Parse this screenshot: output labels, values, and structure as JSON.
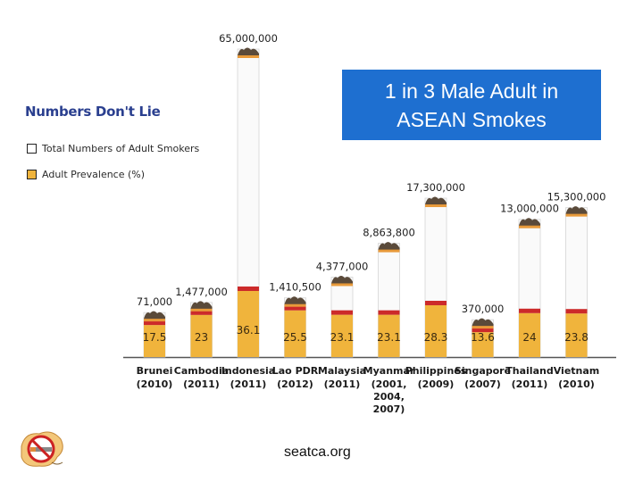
{
  "legend": {
    "title": "Numbers Don't Lie",
    "items": [
      {
        "label": "Total Numbers of Adult Smokers",
        "color": "#ffffff"
      },
      {
        "label": "Adult Prevalence (%)",
        "color": "#f0b43c"
      }
    ]
  },
  "callout": {
    "line1": "1 in 3 Male Adult in",
    "line2": "ASEAN Smokes"
  },
  "footer": {
    "source": "seatca.org"
  },
  "logo_icon": "no-smoking-cigarette-logo",
  "colors": {
    "callout_bg": "#1e6fd0",
    "prevalence_fill": "#f0b43c",
    "filter_band": "#cc2a2a",
    "legend_title": "#2a3f8f"
  },
  "chart_data": {
    "type": "bar",
    "categories": [
      {
        "name": "Brunei",
        "years": [
          "(2010)"
        ]
      },
      {
        "name": "Cambodia",
        "years": [
          "(2011)"
        ]
      },
      {
        "name": "Indonesia",
        "years": [
          "(2011)"
        ]
      },
      {
        "name": "Lao PDR",
        "years": [
          "(2012)"
        ]
      },
      {
        "name": "Malaysia",
        "years": [
          "(2011)"
        ]
      },
      {
        "name": "Myanmar",
        "years": [
          "(2001,",
          "2004,",
          "2007)"
        ]
      },
      {
        "name": "Philippines",
        "years": [
          "(2009)"
        ]
      },
      {
        "name": "Singapore",
        "years": [
          "(2007)"
        ]
      },
      {
        "name": "Thailand",
        "years": [
          "(2011)"
        ]
      },
      {
        "name": "Vietnam",
        "years": [
          "(2010)"
        ]
      }
    ],
    "series": [
      {
        "name": "Total Numbers of Adult Smokers",
        "values": [
          71000,
          1477000,
          65000000,
          1410500,
          4377000,
          8863800,
          17300000,
          370000,
          13000000,
          15300000
        ],
        "labels": [
          "71,000",
          "1,477,000",
          "65,000,000",
          "1,410,500",
          "4,377,000",
          "8,863,800",
          "17,300,000",
          "370,000",
          "13,000,000",
          "15,300,000"
        ]
      },
      {
        "name": "Adult Prevalence (%)",
        "values": [
          17.5,
          23,
          36.1,
          25.5,
          23.1,
          23.1,
          28.3,
          13.6,
          24,
          23.8
        ],
        "labels": [
          "17.5",
          "23",
          "36.1",
          "25.5",
          "23.1",
          "23.1",
          "28.3",
          "13.6",
          "24",
          "23.8"
        ]
      }
    ]
  }
}
